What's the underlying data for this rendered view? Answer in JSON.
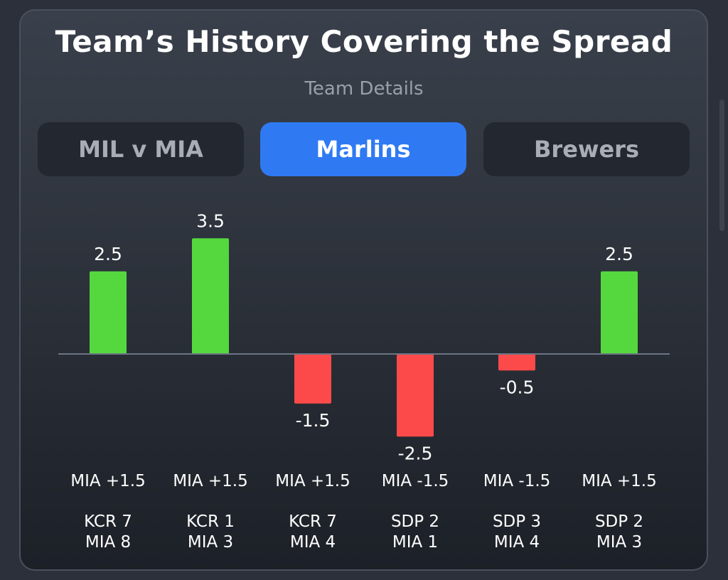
{
  "header": {
    "title": "Team’s History Covering the Spread",
    "subtitle": "Team Details"
  },
  "tabs": [
    {
      "label": "MIL v MIA",
      "active": false
    },
    {
      "label": "Marlins",
      "active": true
    },
    {
      "label": "Brewers",
      "active": false
    }
  ],
  "colors": {
    "positive": "#54d83e",
    "negative": "#fc4a4a",
    "accent": "#2f7af3",
    "baseline": "#6c7585"
  },
  "chart_data": {
    "type": "bar",
    "categories": [
      "KCR 7 / MIA 8",
      "KCR 1 / MIA 3",
      "KCR 7 / MIA 4",
      "SDP 2 / MIA 1",
      "SDP 3 / MIA 4",
      "SDP 2 / MIA 3"
    ],
    "values": [
      2.5,
      3.5,
      -1.5,
      -2.5,
      -0.5,
      2.5
    ],
    "value_labels": [
      "2.5",
      "3.5",
      "-1.5",
      "-2.5",
      "-0.5",
      "2.5"
    ],
    "spreads": [
      "MIA +1.5",
      "MIA +1.5",
      "MIA +1.5",
      "MIA -1.5",
      "MIA -1.5",
      "MIA +1.5"
    ],
    "scores": [
      [
        "KCR 7",
        "MIA 8"
      ],
      [
        "KCR 1",
        "MIA 3"
      ],
      [
        "KCR 7",
        "MIA 4"
      ],
      [
        "SDP 2",
        "MIA 1"
      ],
      [
        "SDP 3",
        "MIA 4"
      ],
      [
        "SDP 2",
        "MIA 3"
      ]
    ],
    "ylim": [
      -2.5,
      3.5
    ],
    "grid": false,
    "legend": "none"
  }
}
